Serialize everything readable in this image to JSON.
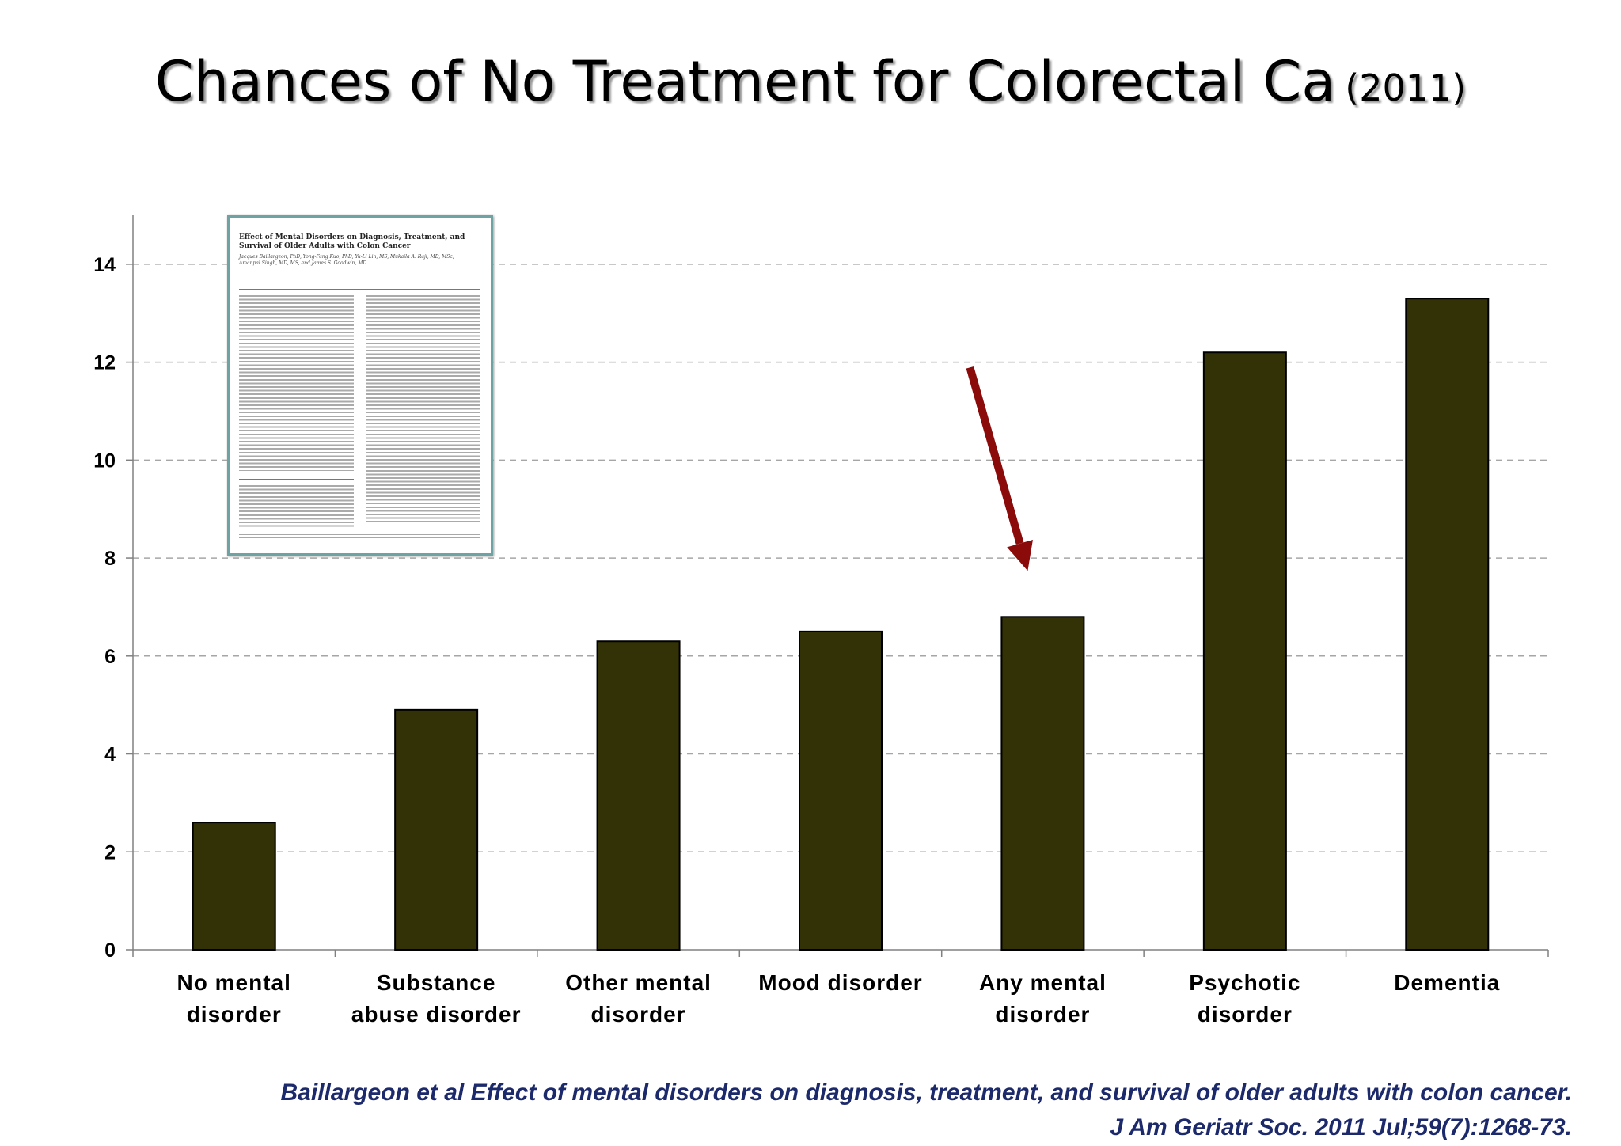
{
  "slide": {
    "title_main": "Chances of No Treatment for Colorectal Ca",
    "title_year": "(2011)"
  },
  "citation": {
    "line1": "Baillargeon et al Effect of mental disorders on diagnosis, treatment, and survival of older adults with colon cancer.",
    "line2": "J Am Geriatr Soc. 2011 Jul;59(7):1268-73."
  },
  "inset_paper": {
    "title": "Effect of Mental Disorders on Diagnosis, Treatment, and Survival of Older Adults with Colon Cancer",
    "authors": "Jacques Baillargeon, PhD, Yong-Fang Kuo, PhD, Yu-Li Lin, MS, Mukaila A. Raji, MD, MSc, Amanpal Singh, MD, MS, and James S. Goodwin, MD"
  },
  "colors": {
    "bar_fill": "#333106",
    "bar_stroke": "#000000",
    "grid": "#a6a6a6",
    "arrow": "#8b0a0a",
    "citation": "#1c2a6b"
  },
  "chart_data": {
    "type": "bar",
    "title": "",
    "xlabel": "",
    "ylabel": "",
    "categories": [
      [
        "No mental",
        "disorder"
      ],
      [
        "Substance",
        "abuse disorder"
      ],
      [
        "Other mental",
        "disorder"
      ],
      [
        "Mood disorder"
      ],
      [
        "Any mental",
        "disorder"
      ],
      [
        "Psychotic",
        "disorder"
      ],
      [
        "Dementia"
      ]
    ],
    "values": [
      2.6,
      4.9,
      6.3,
      6.5,
      6.8,
      12.2,
      13.3
    ],
    "ylim": [
      0,
      15
    ],
    "yticks": [
      "0",
      "2",
      "4",
      "6",
      "8",
      "10",
      "12",
      "14"
    ],
    "grid": true,
    "annotation": {
      "type": "arrow",
      "target_category": "Any mental disorder"
    }
  }
}
